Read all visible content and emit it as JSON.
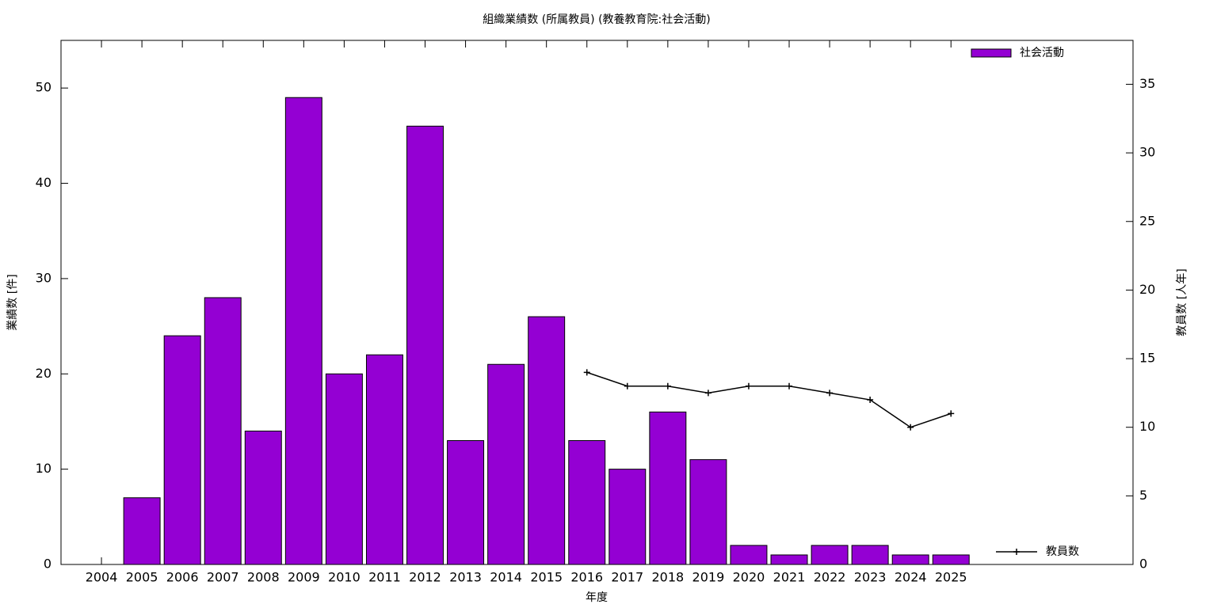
{
  "chart_data": {
    "type": "bar",
    "title": "組織業績数 (所属教員) (教養教育院:社会活動)",
    "x_label": "年度",
    "y_label": "業績数 [件]",
    "y2_label": "教員数 [人年]",
    "x": [
      2004,
      2005,
      2006,
      2007,
      2008,
      2009,
      2010,
      2011,
      2012,
      2013,
      2014,
      2015,
      2016,
      2017,
      2018,
      2019,
      2020,
      2021,
      2022,
      2023,
      2024,
      2025
    ],
    "xlim": [
      2003,
      2029.5
    ],
    "xticks": [
      2004,
      2005,
      2006,
      2007,
      2008,
      2009,
      2010,
      2011,
      2012,
      2013,
      2014,
      2015,
      2016,
      2017,
      2018,
      2019,
      2020,
      2021,
      2022,
      2023,
      2024,
      2025
    ],
    "ylim": [
      0,
      55
    ],
    "yticks": [
      0,
      10,
      20,
      30,
      40,
      50
    ],
    "y2lim": [
      0,
      38.2
    ],
    "y2ticks": [
      0,
      5,
      10,
      15,
      20,
      25,
      30,
      35
    ],
    "series": [
      {
        "name": "社会活動",
        "type": "bar",
        "color": "#9400d3",
        "values": [
          0,
          7,
          24,
          28,
          14,
          49,
          20,
          22,
          46,
          13,
          21,
          26,
          13,
          10,
          16,
          11,
          2,
          1,
          2,
          2,
          1,
          1
        ]
      },
      {
        "name": "教員数",
        "type": "line",
        "color": "#000000",
        "axis": "y2",
        "values": [
          null,
          null,
          null,
          null,
          null,
          null,
          null,
          null,
          null,
          null,
          null,
          null,
          14,
          13,
          13,
          12.5,
          13,
          13,
          12.5,
          12,
          10,
          11
        ]
      }
    ]
  }
}
